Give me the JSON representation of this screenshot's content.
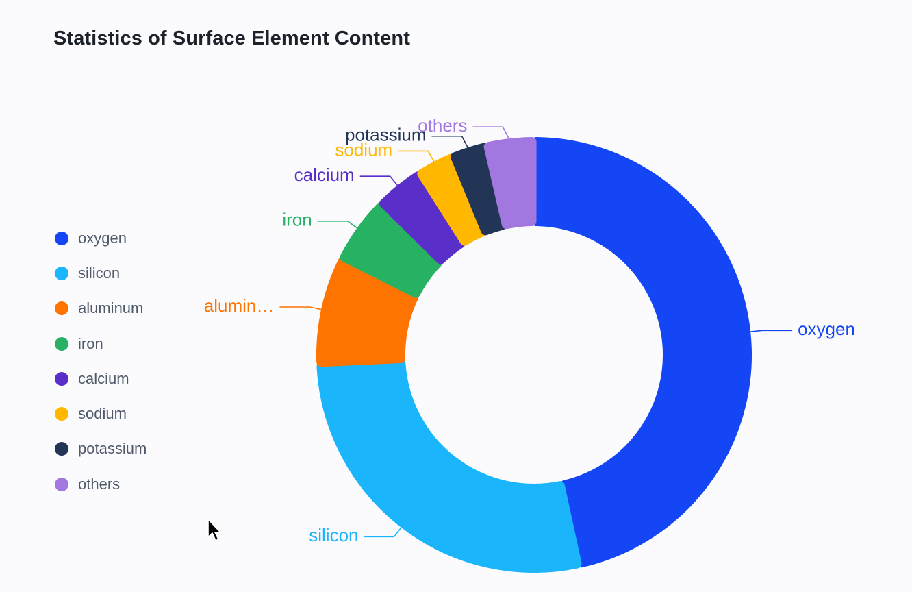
{
  "title": "Statistics of Surface Element Content",
  "chart_data": {
    "type": "pie",
    "variant": "donut",
    "title": "Statistics of Surface Element Content",
    "legend_position": "left",
    "slices": [
      {
        "name": "oxygen",
        "label": "oxygen",
        "value": 46.6,
        "color": "#1546f5"
      },
      {
        "name": "silicon",
        "label": "silicon",
        "value": 27.7,
        "color": "#1bb5fc"
      },
      {
        "name": "aluminum",
        "label": "alumin…",
        "value": 8.1,
        "color": "#ff7300"
      },
      {
        "name": "iron",
        "label": "iron",
        "value": 5.0,
        "color": "#27b263"
      },
      {
        "name": "calcium",
        "label": "calcium",
        "value": 3.6,
        "color": "#5a2ec9"
      },
      {
        "name": "sodium",
        "label": "sodium",
        "value": 2.8,
        "color": "#ffb700"
      },
      {
        "name": "potassium",
        "label": "potassium",
        "value": 2.6,
        "color": "#223556"
      },
      {
        "name": "others",
        "label": "others",
        "value": 3.6,
        "color": "#a277e0"
      }
    ]
  }
}
